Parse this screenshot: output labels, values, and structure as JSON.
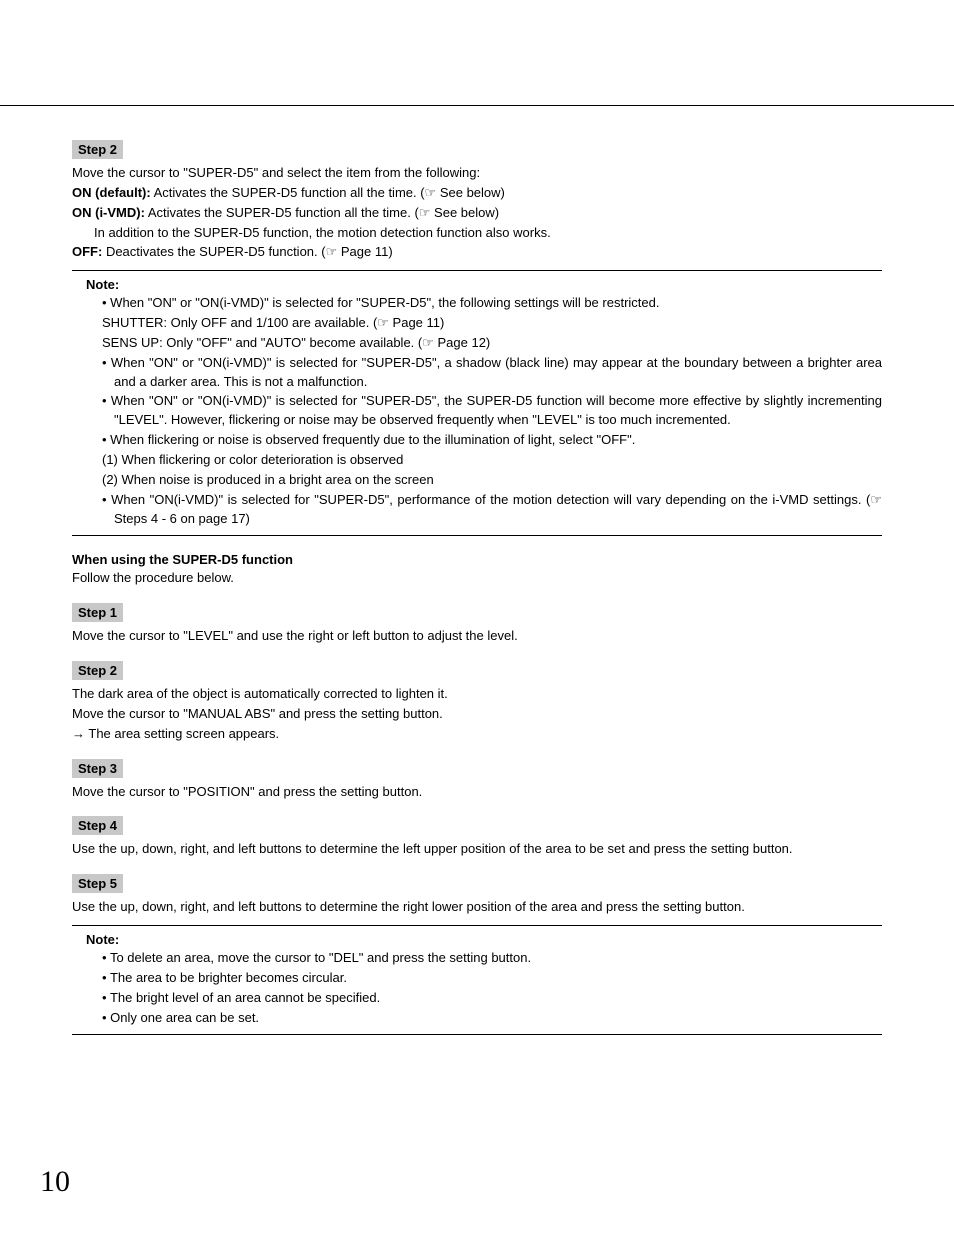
{
  "pageNumber": "10",
  "step2Top": {
    "label": "Step 2",
    "intro": "Move the cursor to \"SUPER-D5\" and select the item from the following:",
    "onDefaultBold": "ON (default):",
    "onDefaultRest": " Activates the SUPER-D5 function all the time. (☞ See below)",
    "onIvmdBold": "ON (i-VMD):",
    "onIvmdRest": " Activates the SUPER-D5 function all the time. (☞ See below)",
    "onIvmdSub": "In addition to the SUPER-D5 function, the motion detection function also works.",
    "offBold": "OFF:",
    "offRest": " Deactivates the SUPER-D5 function. (☞ Page 11)"
  },
  "note1": {
    "title": "Note:",
    "b1": "When \"ON\" or \"ON(i-VMD)\" is selected for \"SUPER-D5\", the following settings will be restricted.",
    "b1s1": "SHUTTER: Only OFF and 1/100 are available. (☞ Page 11)",
    "b1s2": "SENS UP: Only \"OFF\" and \"AUTO\" become available. (☞ Page 12)",
    "b2": "When \"ON\" or \"ON(i-VMD)\" is selected for \"SUPER-D5\", a shadow (black line) may appear at the boundary between a brighter area and a darker area. This is not a malfunction.",
    "b3": "When \"ON\" or \"ON(i-VMD)\" is selected for \"SUPER-D5\", the SUPER-D5 function will become more effective by slightly incrementing \"LEVEL\". However, flickering or noise may be observed frequently when \"LEVEL\" is too much incremented.",
    "b4": "When flickering or noise is observed frequently due to the illumination of light, select \"OFF\".",
    "b4s1": "(1)  When flickering or color deterioration is observed",
    "b4s2": "(2)  When noise is produced in a bright area on the screen",
    "b5": "When \"ON(i-VMD)\" is selected for \"SUPER-D5\", performance of the motion detection will vary depending on the i-VMD settings. (☞ Steps 4 - 6 on page 17)"
  },
  "sectionHeading": "When using the SUPER-D5 function",
  "sectionIntro": "Follow the procedure below.",
  "step1": {
    "label": "Step 1",
    "text": "Move the cursor to \"LEVEL\" and use the right or left button to adjust the level."
  },
  "step2": {
    "label": "Step 2",
    "l1": "The dark area of the object is automatically corrected to lighten it.",
    "l2": "Move the cursor to \"MANUAL ABS\" and press the setting button.",
    "l3": " →  The area setting screen appears."
  },
  "step3": {
    "label": "Step 3",
    "text": "Move the cursor to \"POSITION\" and press the setting button."
  },
  "step4": {
    "label": "Step 4",
    "text": "Use the up, down, right, and left buttons to determine the left upper position of the area to be set and press the setting button."
  },
  "step5": {
    "label": "Step 5",
    "text": "Use the up, down, right, and left buttons to determine the right lower position of the area and press the setting button."
  },
  "note2": {
    "title": "Note:",
    "b1": "To delete an area, move the cursor to \"DEL\" and press the setting button.",
    "b2": "The area to be brighter becomes circular.",
    "b3": "The bright level of an area cannot be specified.",
    "b4": "Only one area can be set."
  }
}
